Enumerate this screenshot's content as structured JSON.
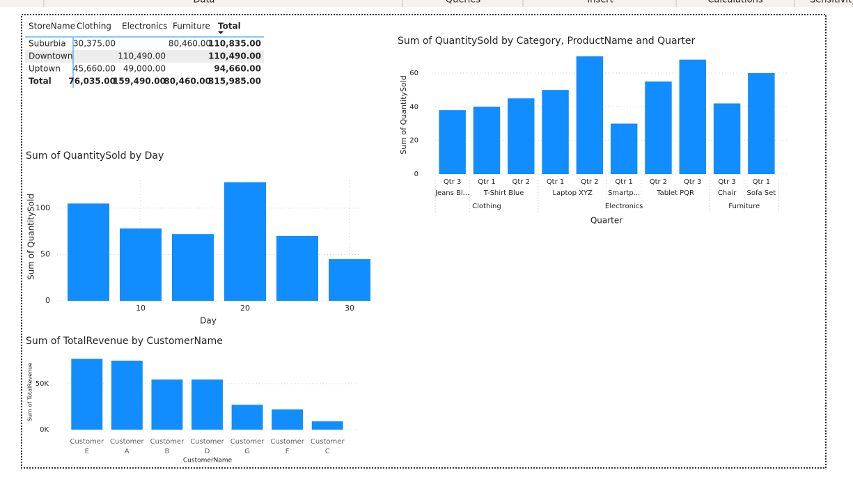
{
  "ribbon": [
    "Data",
    "Queries",
    "Insert",
    "Calculations",
    "Sensitivity"
  ],
  "table": {
    "header": [
      "StoreName",
      "Clothing",
      "Electronics",
      "Furniture",
      "Total"
    ],
    "rows": [
      [
        "Suburbia",
        "30,375.00",
        null,
        "80,460.00",
        "110,835.00"
      ],
      [
        "Downtown",
        null,
        "110,490.00",
        null,
        "110,490.00"
      ],
      [
        "Uptown",
        "45,660.00",
        "49,000.00",
        null,
        "94,660.00"
      ],
      [
        "Total",
        "76,035.00",
        "159,490.00",
        "80,460.00",
        "315,985.00"
      ]
    ]
  },
  "chart_data": [
    {
      "type": "bar",
      "title": "Sum of QuantitySold by Day",
      "x_label": "Day",
      "y_label": "Sum of QuantitySold",
      "x": [
        5,
        10,
        15,
        20,
        25,
        30
      ],
      "values": [
        105,
        78,
        72,
        128,
        70,
        45
      ],
      "color": "#118dff",
      "xlim": [
        2,
        31
      ],
      "xticks": [
        10,
        20,
        30
      ],
      "ylim": [
        0,
        133
      ],
      "yticks": [
        0,
        50,
        100
      ],
      "grid": true
    },
    {
      "type": "bar",
      "title": "Sum of QuantitySold by Category, ProductName and Quarter",
      "x_label": "Quarter",
      "y_label": "Sum of QuantitySold",
      "categories": [
        "Qtr 3",
        "Qtr 1",
        "Qtr 2",
        "Qtr 1",
        "Qtr 2",
        "Qtr 1",
        "Qtr 2",
        "Qtr 3",
        "Qtr 3",
        "Qtr 1"
      ],
      "products": [
        "Jeans Bl...",
        "T-Shirt Blue",
        null,
        "Laptop XYZ",
        null,
        "Smartp...",
        "Tablet PQR",
        null,
        "Chair",
        "Sofa Set"
      ],
      "groups": [
        "Clothing",
        null,
        null,
        "Electronics",
        null,
        null,
        null,
        null,
        "Furniture",
        null
      ],
      "values": [
        38,
        40,
        45,
        50,
        70,
        30,
        55,
        68,
        42,
        60
      ],
      "color": "#118dff",
      "ylim": [
        0,
        72
      ],
      "yticks": [
        0,
        20,
        40,
        60
      ],
      "grid": true
    },
    {
      "type": "bar",
      "title": "Sum of TotalRevenue by CustomerName",
      "x_label": "CustomerName",
      "y_label": "Sum of TotalRevenue",
      "categories": [
        "Customer E",
        "Customer A",
        "Customer B",
        "Customer D",
        "Customer G",
        "Customer F",
        "Customer C"
      ],
      "values": [
        77000,
        75000,
        54500,
        54500,
        27000,
        22000,
        9000
      ],
      "color": "#118dff",
      "ylim": [
        0,
        81000
      ],
      "yticks": [
        {
          "value": 0,
          "label": "0K"
        },
        {
          "value": 50000,
          "label": "50K"
        }
      ],
      "grid": true
    }
  ]
}
